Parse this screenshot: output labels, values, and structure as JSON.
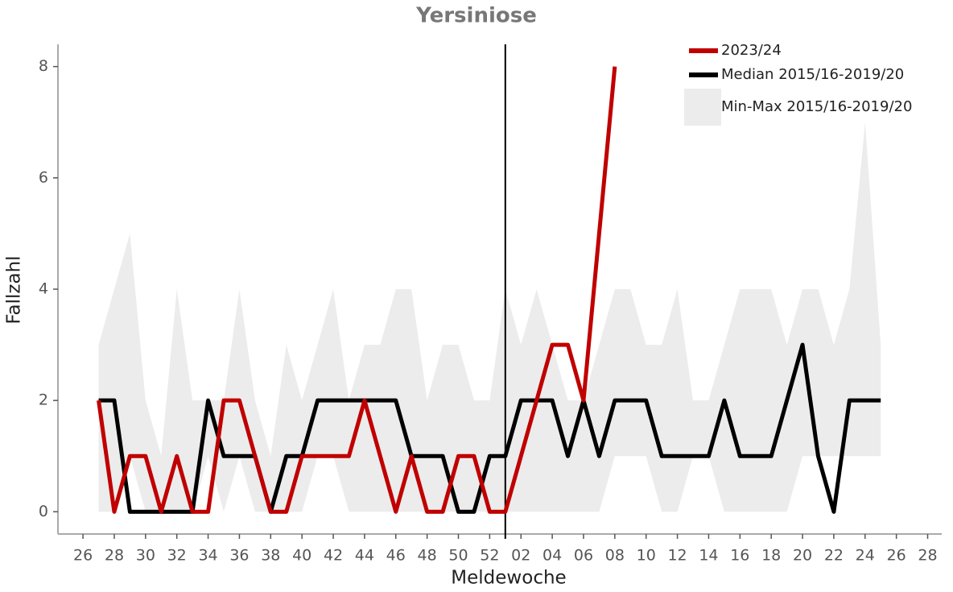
{
  "chart_data": {
    "type": "line",
    "title": "Yersiniose",
    "xlabel": "Meldewoche",
    "ylabel": "Fallzahl",
    "x": [
      27,
      28,
      29,
      30,
      31,
      32,
      33,
      34,
      35,
      36,
      37,
      38,
      39,
      40,
      41,
      42,
      43,
      44,
      45,
      46,
      47,
      48,
      49,
      50,
      51,
      52,
      53,
      54,
      55,
      56,
      57,
      58,
      59,
      60,
      61,
      62,
      63,
      64,
      65,
      66,
      67,
      68,
      69,
      70,
      71,
      72,
      73,
      74,
      75,
      76,
      77
    ],
    "series": [
      {
        "name": "Min-Max 2015/16-2019/20",
        "color": "#ececec",
        "style": "band",
        "lower": [
          0,
          0,
          1,
          0,
          0,
          0,
          0,
          1,
          0,
          1,
          0,
          0,
          0,
          0,
          1,
          1,
          0,
          0,
          0,
          0,
          0,
          0,
          0,
          0,
          0,
          0,
          0,
          0,
          0,
          0,
          0,
          0,
          0,
          1,
          1,
          1,
          0,
          0,
          1,
          1,
          0,
          0,
          0,
          0,
          0,
          1,
          1,
          1,
          1,
          1,
          1
        ],
        "upper": [
          3,
          4,
          5,
          2,
          1,
          4,
          2,
          2,
          2,
          4,
          2,
          1,
          3,
          2,
          3,
          4,
          2,
          3,
          3,
          4,
          4,
          2,
          3,
          3,
          2,
          2,
          4,
          3,
          4,
          3,
          2,
          2,
          3,
          4,
          4,
          3,
          3,
          4,
          2,
          2,
          3,
          4,
          4,
          4,
          3,
          4,
          4,
          3,
          4,
          7,
          3
        ]
      },
      {
        "name": "Median 2015/16-2019/20",
        "color": "#000000",
        "style": "line",
        "values": [
          2,
          2,
          0,
          0,
          0,
          0,
          0,
          2,
          1,
          1,
          1,
          0,
          1,
          1,
          2,
          2,
          2,
          2,
          2,
          2,
          1,
          1,
          1,
          0,
          0,
          1,
          1,
          2,
          2,
          2,
          1,
          2,
          1,
          2,
          2,
          2,
          1,
          1,
          1,
          1,
          2,
          1,
          1,
          1,
          2,
          3,
          1,
          0,
          2,
          2,
          2
        ]
      },
      {
        "name": "2023/24",
        "color": "#c00000",
        "style": "line",
        "values": [
          2,
          0,
          1,
          1,
          0,
          1,
          0,
          0,
          2,
          2,
          1,
          0,
          0,
          1,
          1,
          1,
          1,
          2,
          1,
          0,
          1,
          0,
          0,
          1,
          1,
          0,
          0,
          1,
          2,
          3,
          3,
          2,
          5,
          8,
          null,
          null,
          null,
          null,
          null,
          null,
          null,
          null,
          null,
          null,
          null,
          null,
          null,
          null,
          null,
          null,
          null
        ]
      }
    ],
    "vline": 53,
    "xlim": [
      24.4,
      80.9
    ],
    "xticks": [
      26,
      28,
      30,
      32,
      34,
      36,
      38,
      40,
      42,
      44,
      46,
      48,
      50,
      52,
      {
        "value": 54,
        "label": "02"
      },
      {
        "value": 56,
        "label": "04"
      },
      {
        "value": 58,
        "label": "06"
      },
      {
        "value": 60,
        "label": "08"
      },
      {
        "value": 62,
        "label": "10"
      },
      {
        "value": 64,
        "label": "12"
      },
      {
        "value": 66,
        "label": "14"
      },
      {
        "value": 68,
        "label": "16"
      },
      {
        "value": 70,
        "label": "18"
      },
      {
        "value": 72,
        "label": "20"
      },
      {
        "value": 74,
        "label": "22"
      },
      {
        "value": 76,
        "label": "24"
      },
      {
        "value": 78,
        "label": "26"
      },
      {
        "value": 80,
        "label": "28"
      }
    ],
    "ylim": [
      -0.4,
      8.4
    ],
    "yticks": [
      0,
      2,
      4,
      6,
      8
    ],
    "legend": "top-right",
    "grid": false
  }
}
